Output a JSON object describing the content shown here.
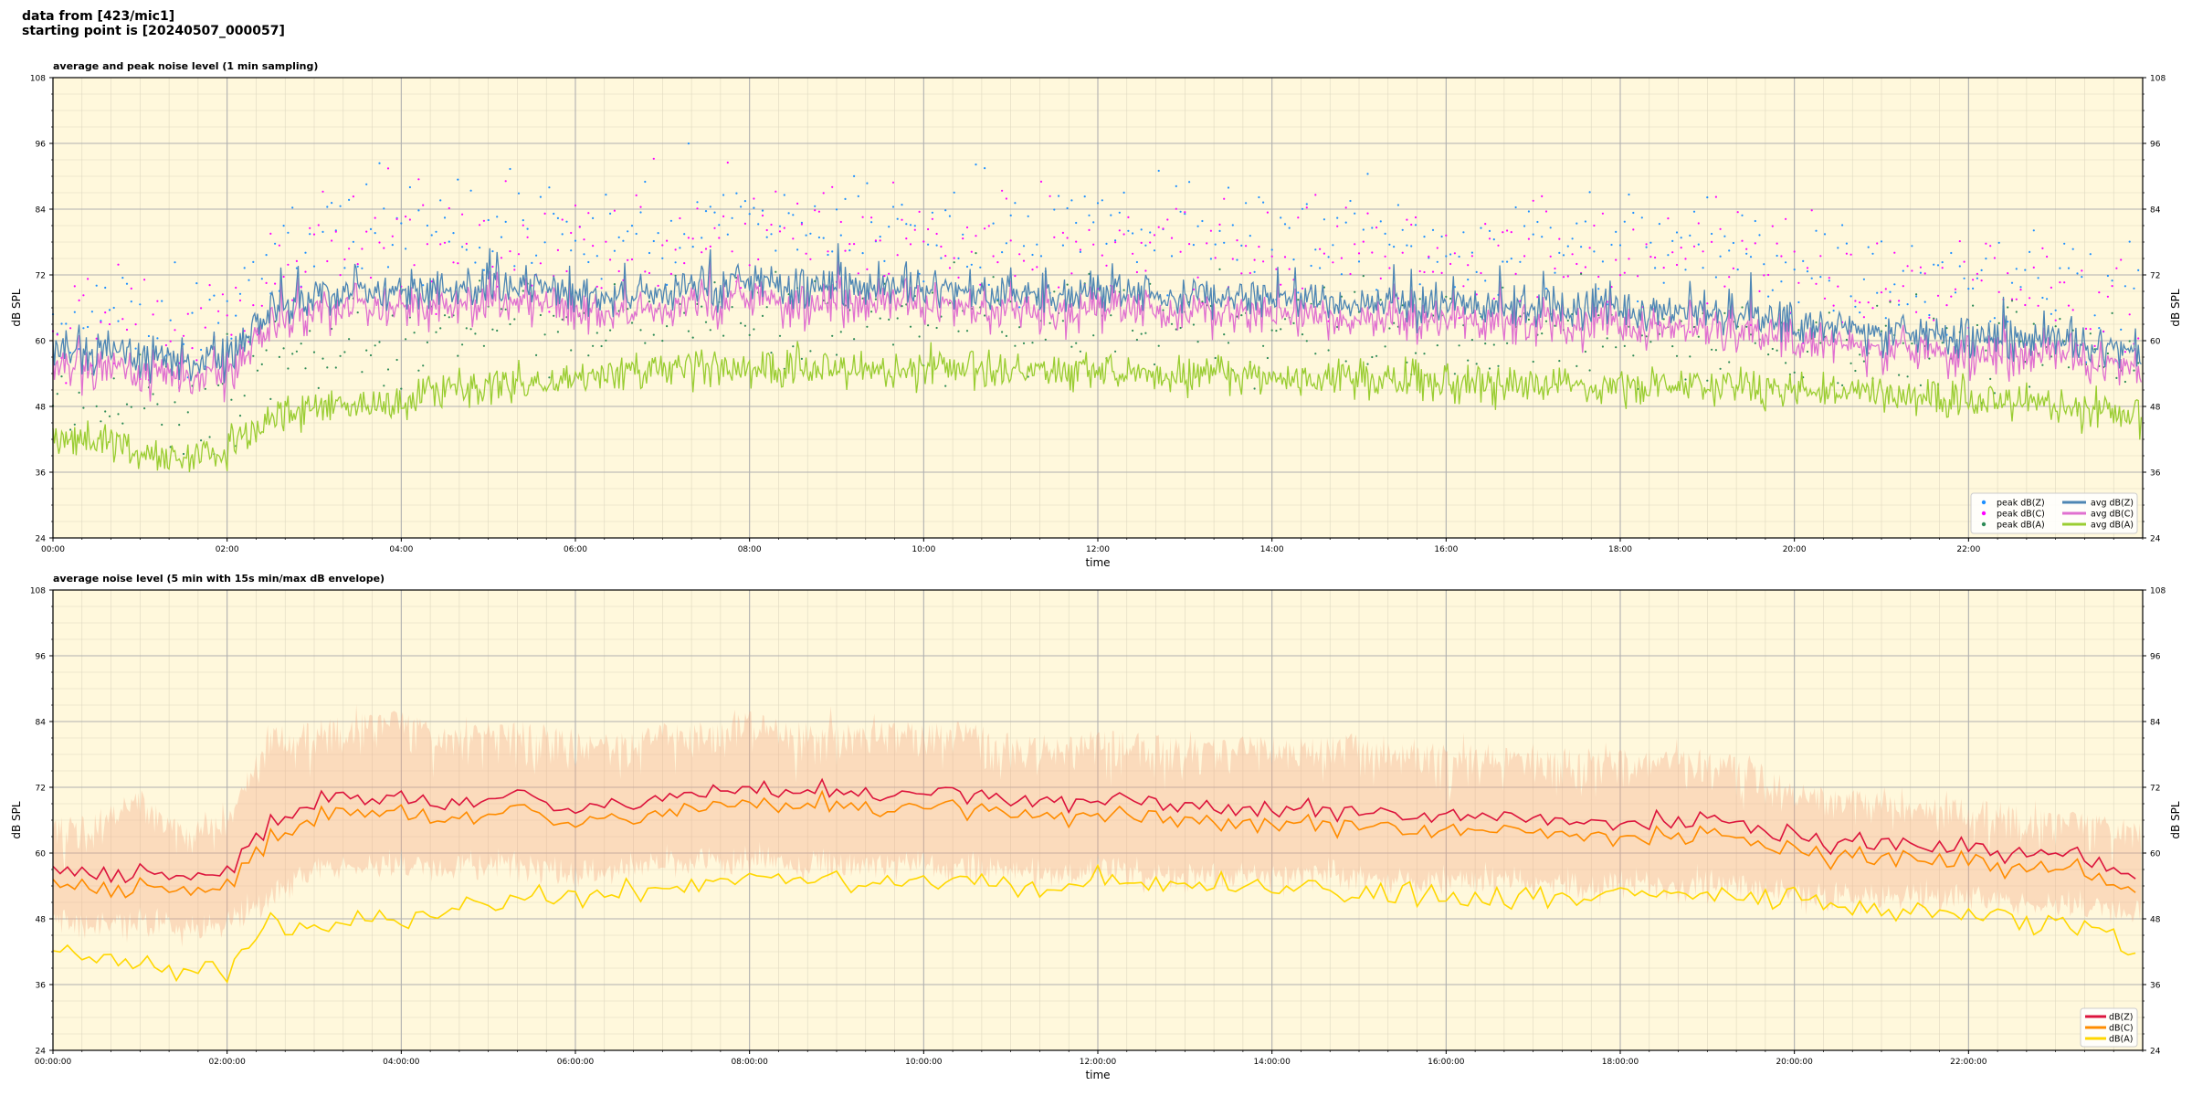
{
  "header": {
    "line1": "data from [423/mic1]",
    "line2": "starting point is [20240507_000057]"
  },
  "colors": {
    "plot_background": "#fff8dc",
    "major_grid": "#b0b0b0",
    "minor_grid": "#dfd8c0",
    "dBZ_avg": "#4e86b4",
    "dBC_avg": "#e070d0",
    "dBA_avg": "#9acd32",
    "peak_Z": "#1e90ff",
    "peak_C": "#ff00ff",
    "peak_A": "#2e8b57",
    "env_fill": "#f4a582",
    "dBZ_line": "#dc143c",
    "dBC_line": "#ff8c00",
    "dBA_line": "#ffd700"
  },
  "chart_data": [
    {
      "type": "line",
      "title": "average and peak noise level (1 min sampling)",
      "xlabel": "time",
      "ylabel": "dB SPL",
      "ylabel_right": "dB SPL",
      "xlim_hours": [
        0,
        24
      ],
      "ylim": [
        24,
        108
      ],
      "yticks": [
        24,
        36,
        48,
        60,
        72,
        84,
        96,
        108
      ],
      "xtick_labels": [
        "00:00",
        "02:00",
        "04:00",
        "06:00",
        "08:00",
        "10:00",
        "12:00",
        "14:00",
        "16:00",
        "18:00",
        "20:00",
        "22:00"
      ],
      "grid": true,
      "legend_position": "lower-right",
      "legend": [
        "peak dB(Z)",
        "peak dB(C)",
        "peak dB(A)",
        "avg dB(Z)",
        "avg dB(C)",
        "avg dB(A)"
      ],
      "x": [
        0,
        0.5,
        1,
        1.5,
        2,
        2.5,
        3,
        3.5,
        4,
        4.5,
        5,
        5.5,
        6,
        6.5,
        7,
        7.5,
        8,
        8.5,
        9,
        9.5,
        10,
        10.5,
        11,
        11.5,
        12,
        12.5,
        13,
        13.5,
        14,
        14.5,
        15,
        15.5,
        16,
        16.5,
        17,
        17.5,
        18,
        18.5,
        19,
        19.5,
        20,
        20.5,
        21,
        21.5,
        22,
        22.5,
        23,
        23.5,
        24
      ],
      "series": [
        {
          "name": "avg dB(Z)",
          "values": [
            58,
            58,
            57,
            56,
            57,
            66,
            68,
            69,
            69,
            69,
            70,
            70,
            68,
            68,
            69,
            70,
            71,
            70,
            70,
            69,
            70,
            69,
            69,
            68,
            69,
            69,
            68,
            68,
            68,
            68,
            67,
            67,
            67,
            66,
            66,
            66,
            66,
            66,
            65,
            65,
            63,
            63,
            62,
            61,
            61,
            60,
            60,
            59,
            58
          ]
        },
        {
          "name": "avg dB(C)",
          "values": [
            55,
            55,
            54,
            53,
            54,
            62,
            64,
            66,
            66,
            66,
            67,
            67,
            65,
            65,
            66,
            67,
            68,
            67,
            67,
            66,
            66,
            66,
            66,
            65,
            66,
            66,
            65,
            65,
            65,
            65,
            64,
            64,
            64,
            63,
            63,
            63,
            63,
            63,
            63,
            62,
            61,
            61,
            60,
            59,
            59,
            58,
            58,
            57,
            56
          ]
        },
        {
          "name": "avg dB(A)",
          "values": [
            42,
            42,
            40,
            39,
            40,
            46,
            47,
            48,
            49,
            51,
            52,
            53,
            53,
            54,
            55,
            55,
            55,
            55,
            55,
            54,
            55,
            55,
            55,
            54,
            55,
            54,
            54,
            54,
            53,
            53,
            53,
            53,
            52,
            52,
            52,
            52,
            52,
            52,
            52,
            51,
            51,
            51,
            50,
            50,
            49,
            49,
            48,
            47,
            46
          ]
        },
        {
          "name": "peak dB(Z)",
          "values": [
            65,
            66,
            64,
            63,
            65,
            76,
            79,
            80,
            80,
            80,
            81,
            81,
            79,
            79,
            80,
            81,
            82,
            81,
            81,
            80,
            81,
            80,
            80,
            79,
            80,
            80,
            79,
            79,
            79,
            79,
            78,
            78,
            78,
            77,
            77,
            77,
            77,
            77,
            76,
            76,
            74,
            74,
            73,
            72,
            72,
            71,
            71,
            70,
            69
          ]
        },
        {
          "name": "peak dB(C)",
          "values": [
            63,
            63,
            61,
            60,
            62,
            73,
            76,
            77,
            78,
            78,
            78,
            79,
            76,
            77,
            78,
            78,
            80,
            79,
            79,
            78,
            78,
            78,
            78,
            77,
            78,
            78,
            77,
            77,
            77,
            77,
            76,
            76,
            76,
            75,
            75,
            75,
            75,
            75,
            74,
            74,
            72,
            72,
            71,
            70,
            70,
            69,
            69,
            68,
            67
          ]
        },
        {
          "name": "peak dB(A)",
          "values": [
            50,
            50,
            48,
            47,
            49,
            56,
            58,
            59,
            60,
            61,
            62,
            63,
            62,
            63,
            64,
            64,
            64,
            64,
            64,
            63,
            64,
            64,
            64,
            63,
            64,
            63,
            63,
            63,
            62,
            62,
            62,
            62,
            61,
            61,
            61,
            61,
            61,
            61,
            61,
            60,
            60,
            60,
            59,
            59,
            58,
            58,
            57,
            56,
            55
          ]
        }
      ]
    },
    {
      "type": "line",
      "title": "average noise level (5 min with 15s min/max dB envelope)",
      "xlabel": "time",
      "ylabel": "dB SPL",
      "ylabel_right": "dB SPL",
      "xlim_hours": [
        0,
        24
      ],
      "ylim": [
        24,
        108
      ],
      "yticks": [
        24,
        36,
        48,
        60,
        72,
        84,
        96,
        108
      ],
      "xtick_labels": [
        "00:00:00",
        "02:00:00",
        "04:00:00",
        "06:00:00",
        "08:00:00",
        "10:00:00",
        "12:00:00",
        "14:00:00",
        "16:00:00",
        "18:00:00",
        "20:00:00",
        "22:00:00"
      ],
      "grid": true,
      "legend_position": "lower-right",
      "legend": [
        "dB(Z)",
        "dB(C)",
        "dB(A)"
      ],
      "x": [
        0,
        0.5,
        1,
        1.5,
        2,
        2.5,
        3,
        3.5,
        4,
        4.5,
        5,
        5.5,
        6,
        6.5,
        7,
        7.5,
        8,
        8.5,
        9,
        9.5,
        10,
        10.5,
        11,
        11.5,
        12,
        12.5,
        13,
        13.5,
        14,
        14.5,
        15,
        15.5,
        16,
        16.5,
        17,
        17.5,
        18,
        18.5,
        19,
        19.5,
        20,
        20.5,
        21,
        21.5,
        22,
        22.5,
        23,
        23.5,
        24
      ],
      "series": [
        {
          "name": "dB(Z)",
          "values": [
            57,
            56,
            57,
            55,
            56,
            66,
            69,
            70,
            70,
            69,
            70,
            70,
            68,
            69,
            70,
            71,
            72,
            71,
            71,
            70,
            71,
            70,
            69,
            69,
            70,
            69,
            68,
            68,
            68,
            68,
            68,
            67,
            67,
            67,
            67,
            66,
            66,
            66,
            66,
            65,
            63,
            62,
            62,
            61,
            61,
            60,
            60,
            58,
            56
          ]
        },
        {
          "name": "dB(C)",
          "values": [
            55,
            54,
            55,
            53,
            54,
            63,
            66,
            67,
            67,
            66,
            67,
            67,
            66,
            66,
            67,
            68,
            69,
            68,
            68,
            67,
            68,
            67,
            67,
            66,
            67,
            66,
            66,
            65,
            65,
            65,
            65,
            65,
            64,
            64,
            64,
            63,
            63,
            63,
            63,
            63,
            61,
            60,
            60,
            59,
            59,
            58,
            58,
            56,
            55
          ]
        },
        {
          "name": "dB(A)",
          "values": [
            42,
            41,
            40,
            38,
            39,
            48,
            47,
            48,
            48,
            50,
            51,
            52,
            52,
            53,
            54,
            54,
            55,
            55,
            55,
            54,
            55,
            55,
            55,
            54,
            55,
            54,
            54,
            54,
            53,
            53,
            53,
            53,
            52,
            52,
            52,
            52,
            52,
            52,
            52,
            51,
            52,
            51,
            50,
            49,
            49,
            48,
            47,
            46,
            41
          ]
        },
        {
          "name": "envelope min",
          "values": [
            48,
            47,
            48,
            46,
            47,
            52,
            57,
            58,
            58,
            57,
            58,
            58,
            56,
            57,
            58,
            58,
            59,
            58,
            58,
            57,
            58,
            57,
            57,
            56,
            57,
            56,
            56,
            56,
            56,
            56,
            56,
            55,
            55,
            55,
            55,
            54,
            54,
            54,
            54,
            54,
            53,
            52,
            52,
            52,
            52,
            51,
            51,
            50,
            49
          ]
        },
        {
          "name": "envelope max",
          "values": [
            68,
            70,
            74,
            67,
            70,
            85,
            86,
            88,
            88,
            85,
            86,
            86,
            84,
            84,
            86,
            86,
            88,
            86,
            86,
            86,
            86,
            86,
            84,
            83,
            85,
            84,
            83,
            83,
            84,
            83,
            84,
            82,
            82,
            82,
            82,
            81,
            81,
            81,
            81,
            80,
            75,
            74,
            73,
            72,
            72,
            71,
            70,
            69,
            68
          ]
        }
      ]
    }
  ]
}
